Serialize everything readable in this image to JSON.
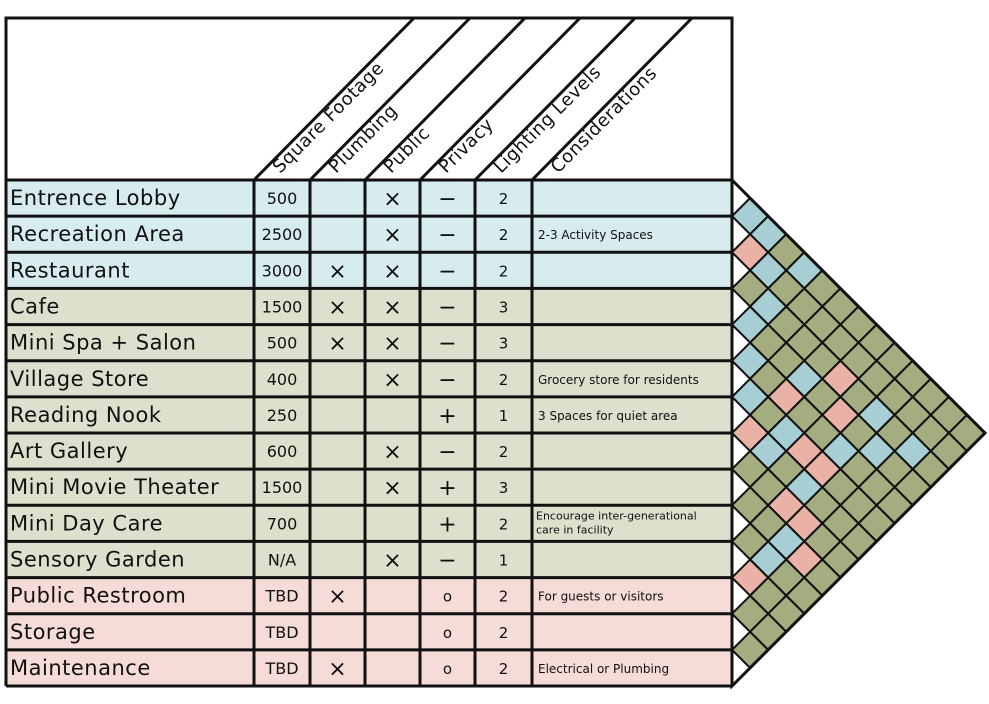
{
  "headers": [
    "Square Footage",
    "Plumbing",
    "Public",
    "Privacy",
    "Lighting Levels",
    "Considerations"
  ],
  "colors": {
    "blue": "#d6ecef",
    "green": "#dde0cd",
    "pink": "#f6dcd6",
    "grid_blue": "#a8ced5",
    "grid_green": "#a3ad7f",
    "grid_pink": "#eab1a7",
    "line": "#111111"
  },
  "rows": [
    {
      "name": "Entrence Lobby",
      "sqft": "500",
      "plumbing": "",
      "public": "×",
      "privacy": "−",
      "lighting": "2",
      "considerations": "",
      "group": "blue"
    },
    {
      "name": "Recreation Area",
      "sqft": "2500",
      "plumbing": "",
      "public": "×",
      "privacy": "−",
      "lighting": "2",
      "considerations": "2-3 Activity Spaces",
      "group": "blue"
    },
    {
      "name": "Restaurant",
      "sqft": "3000",
      "plumbing": "×",
      "public": "×",
      "privacy": "−",
      "lighting": "2",
      "considerations": "",
      "group": "blue"
    },
    {
      "name": "Cafe",
      "sqft": "1500",
      "plumbing": "×",
      "public": "×",
      "privacy": "−",
      "lighting": "3",
      "considerations": "",
      "group": "green"
    },
    {
      "name": "Mini Spa + Salon",
      "sqft": "500",
      "plumbing": "×",
      "public": "×",
      "privacy": "−",
      "lighting": "3",
      "considerations": "",
      "group": "green"
    },
    {
      "name": "Village Store",
      "sqft": "400",
      "plumbing": "",
      "public": "×",
      "privacy": "−",
      "lighting": "2",
      "considerations": "Grocery store for residents",
      "group": "green"
    },
    {
      "name": "Reading Nook",
      "sqft": "250",
      "plumbing": "",
      "public": "",
      "privacy": "+",
      "lighting": "1",
      "considerations": "3 Spaces for quiet area",
      "group": "green"
    },
    {
      "name": "Art Gallery",
      "sqft": "600",
      "plumbing": "",
      "public": "×",
      "privacy": "−",
      "lighting": "2",
      "considerations": "",
      "group": "green"
    },
    {
      "name": "Mini Movie Theater",
      "sqft": "1500",
      "plumbing": "",
      "public": "×",
      "privacy": "+",
      "lighting": "3",
      "considerations": "",
      "group": "green"
    },
    {
      "name": "Mini Day Care",
      "sqft": "700",
      "plumbing": "",
      "public": "",
      "privacy": "+",
      "lighting": "2",
      "considerations": "Encourage inter-generational care in facility",
      "group": "green"
    },
    {
      "name": "Sensory Garden",
      "sqft": "N/A",
      "plumbing": "",
      "public": "×",
      "privacy": "−",
      "lighting": "1",
      "considerations": "",
      "group": "green"
    },
    {
      "name": "Public Restroom",
      "sqft": "TBD",
      "plumbing": "×",
      "public": "",
      "privacy": "o",
      "lighting": "2",
      "considerations": "For guests  or visitors",
      "group": "pink"
    },
    {
      "name": "Storage",
      "sqft": "TBD",
      "plumbing": "",
      "public": "",
      "privacy": "o",
      "lighting": "2",
      "considerations": "",
      "group": "pink"
    },
    {
      "name": "Maintenance",
      "sqft": "TBD",
      "plumbing": "×",
      "public": "",
      "privacy": "o",
      "lighting": "2",
      "considerations": "Electrical or Plumbing",
      "group": "pink"
    }
  ],
  "adjacency": [
    [
      "blue",
      "blue",
      "green",
      "blue",
      "green",
      "green",
      "green",
      "green",
      "green",
      "green",
      "green",
      "green",
      "green"
    ],
    [
      "pink",
      "blue",
      "green",
      "green",
      "green",
      "green",
      "green",
      "green",
      "green",
      "green",
      "green",
      "green"
    ],
    [
      "green",
      "blue",
      "green",
      "green",
      "green",
      "pink",
      "green",
      "blue",
      "green",
      "blue",
      "green"
    ],
    [
      "blue",
      "green",
      "green",
      "blue",
      "green",
      "pink",
      "green",
      "blue",
      "green",
      "green"
    ],
    [
      "blue",
      "green",
      "pink",
      "green",
      "green",
      "blue",
      "green",
      "green",
      "green"
    ],
    [
      "blue",
      "green",
      "blue",
      "pink",
      "pink",
      "green",
      "green",
      "green"
    ],
    [
      "pink",
      "blue",
      "green",
      "blue",
      "green",
      "green",
      "green"
    ],
    [
      "green",
      "green",
      "pink",
      "pink",
      "green",
      "green"
    ],
    [
      "green",
      "green",
      "blue",
      "pink",
      "green"
    ],
    [
      "green",
      "blue",
      "green",
      "green"
    ],
    [
      "pink",
      "green",
      "green"
    ],
    [
      "green",
      "green"
    ],
    [
      "green"
    ]
  ]
}
